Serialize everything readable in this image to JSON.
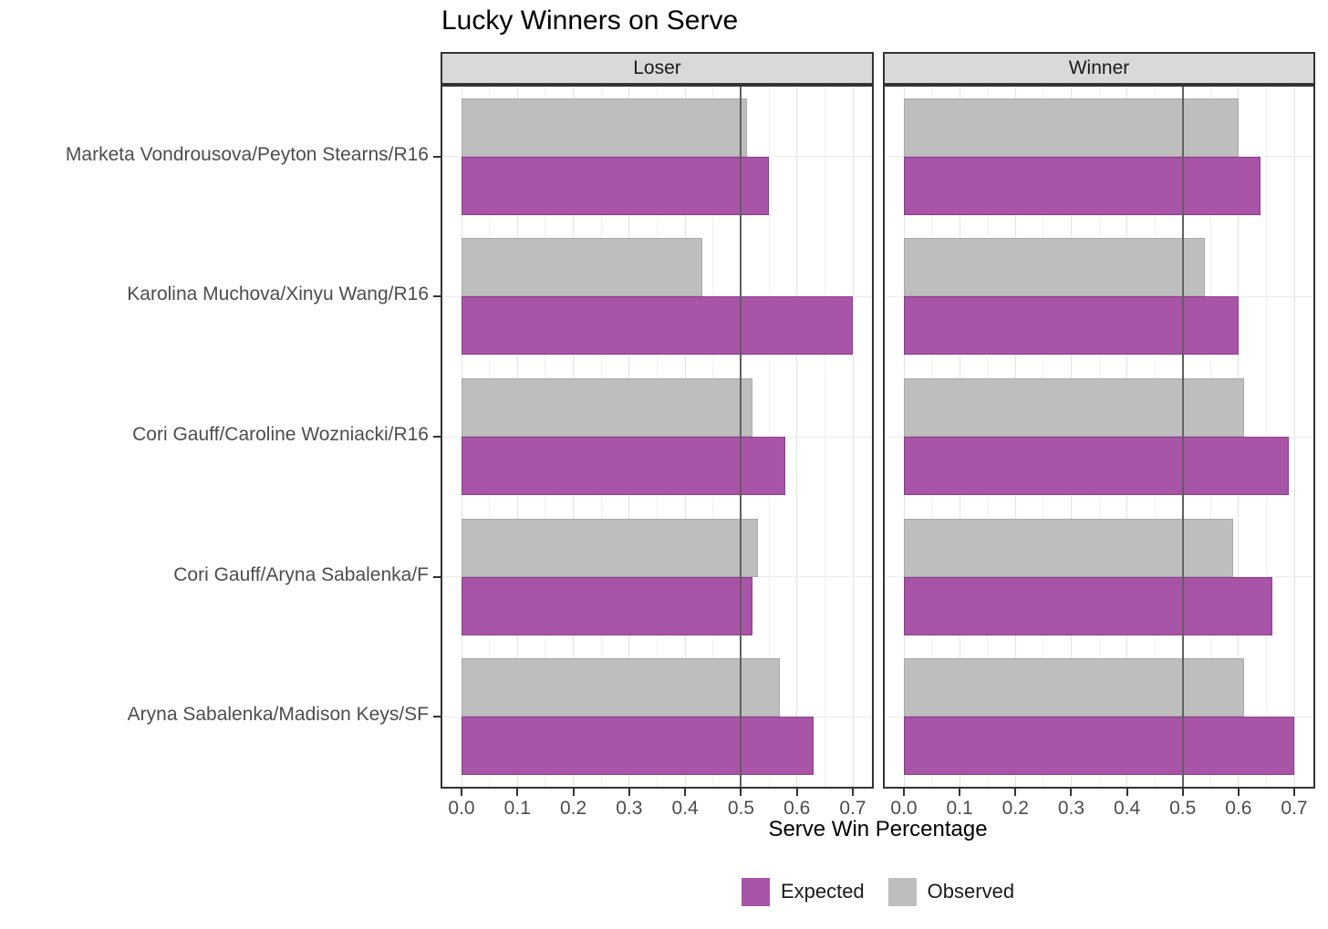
{
  "title": "Lucky Winners on Serve",
  "chart_data": {
    "type": "bar",
    "orientation": "horizontal",
    "title": "Lucky Winners on Serve",
    "xlabel": "Serve Win Percentage",
    "ylabel": "",
    "xlim": [
      0,
      0.7
    ],
    "x_tick_labels": [
      "0.0",
      "0.1",
      "0.2",
      "0.3",
      "0.4",
      "0.5",
      "0.6",
      "0.7"
    ],
    "x_tick_values": [
      0.0,
      0.1,
      0.2,
      0.3,
      0.4,
      0.5,
      0.6,
      0.7
    ],
    "x_minor_tick_values": [
      0.05,
      0.15,
      0.25,
      0.35,
      0.45,
      0.55,
      0.65
    ],
    "reference_line_x": 0.5,
    "grid": true,
    "legend_position": "bottom",
    "facets": [
      "Loser",
      "Winner"
    ],
    "categories": [
      "Marketa Vondrousova/Peyton Stearns/R16",
      "Karolina Muchova/Xinyu Wang/R16",
      "Cori Gauff/Caroline Wozniacki/R16",
      "Cori Gauff/Aryna Sabalenka/F",
      "Aryna Sabalenka/Madison Keys/SF"
    ],
    "series": [
      {
        "name": "Observed",
        "color": "#BEBEBE",
        "border_color": "#a9a9a9",
        "facet_values": {
          "Loser": [
            0.51,
            0.43,
            0.52,
            0.53,
            0.57
          ],
          "Winner": [
            0.6,
            0.54,
            0.61,
            0.59,
            0.61
          ]
        }
      },
      {
        "name": "Expected",
        "color": "#A854A7",
        "border_color": "#8c3d8c",
        "facet_values": {
          "Loser": [
            0.55,
            0.7,
            0.58,
            0.52,
            0.63
          ],
          "Winner": [
            0.64,
            0.6,
            0.69,
            0.66,
            0.7
          ]
        }
      }
    ],
    "legend": [
      "Expected",
      "Observed"
    ]
  },
  "colors": {
    "expected": "#A854A7",
    "observed": "#BEBEBE",
    "strip_background": "#D9D9D9",
    "panel_border": "#333333",
    "reference_line": "#606060",
    "axis_text": "#4d4d4d"
  }
}
